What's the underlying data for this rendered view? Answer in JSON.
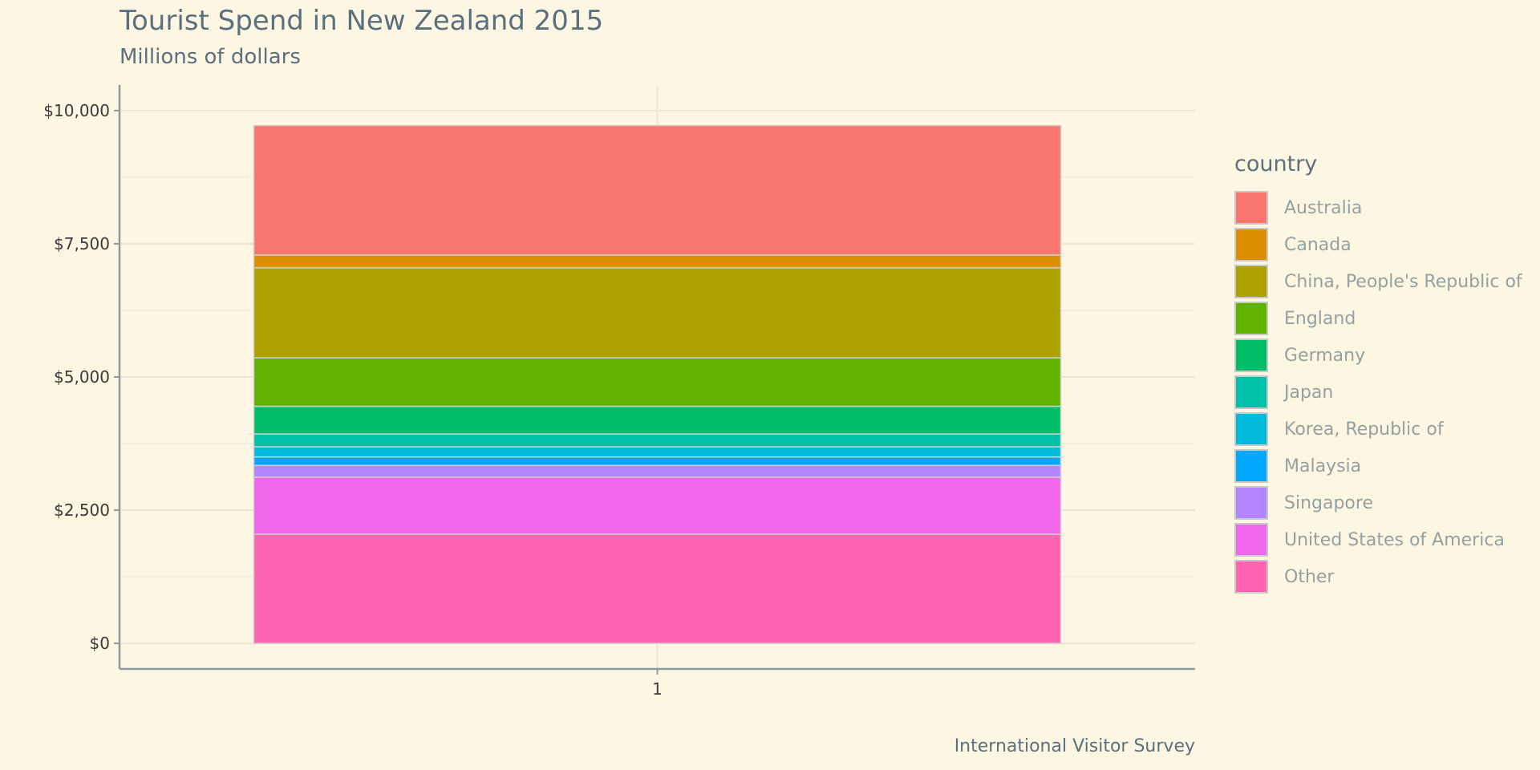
{
  "chart_data": {
    "type": "bar",
    "stacked": true,
    "title": "Tourist Spend in New Zealand 2015",
    "subtitle": "Millions of dollars",
    "caption": "International Visitor Survey",
    "legend_title": "country",
    "legend_position": "right",
    "categories": [
      "1"
    ],
    "y_ticks": [
      "$0",
      "$2,500",
      "$5,000",
      "$7,500",
      "$10,000"
    ],
    "y_tick_values": [
      0,
      2500,
      5000,
      7500,
      10000
    ],
    "ylim": [
      -480,
      10480
    ],
    "grid": true,
    "series": [
      {
        "name": "Other",
        "color": "#ff64b0",
        "values": [
          2050
        ]
      },
      {
        "name": "United States of America",
        "color": "#ef67eb",
        "values": [
          1070
        ]
      },
      {
        "name": "Singapore",
        "color": "#b385ff",
        "values": [
          220
        ]
      },
      {
        "name": "Malaysia",
        "color": "#00a9ff",
        "values": [
          160
        ]
      },
      {
        "name": "Korea, Republic of",
        "color": "#00bbdc",
        "values": [
          190
        ]
      },
      {
        "name": "Japan",
        "color": "#00c1a7",
        "values": [
          240
        ]
      },
      {
        "name": "Germany",
        "color": "#00be67",
        "values": [
          520
        ]
      },
      {
        "name": "England",
        "color": "#64b200",
        "values": [
          910
        ]
      },
      {
        "name": "China, People's Republic of",
        "color": "#aea200",
        "values": [
          1690
        ]
      },
      {
        "name": "Canada",
        "color": "#db8e00",
        "values": [
          240
        ]
      },
      {
        "name": "Australia",
        "color": "#f8766d",
        "values": [
          2430
        ]
      }
    ]
  }
}
